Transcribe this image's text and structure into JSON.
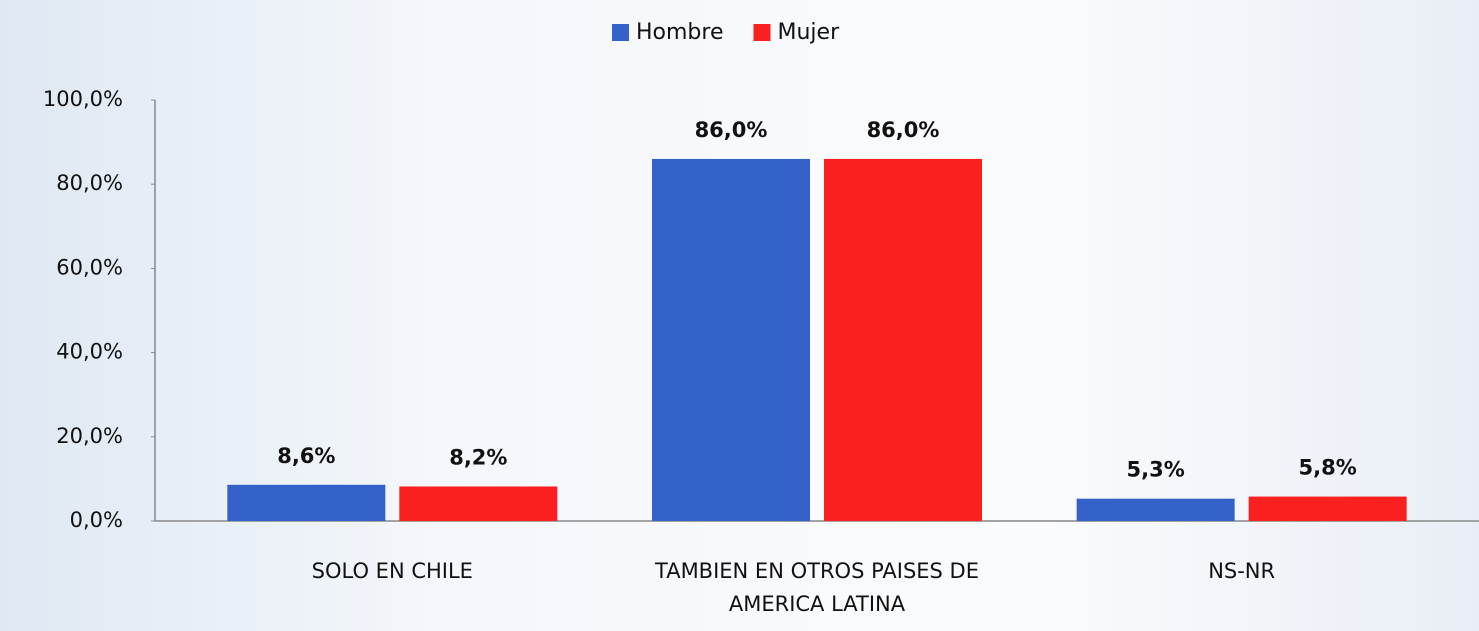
{
  "chart_data": {
    "type": "bar",
    "categories": [
      "SOLO EN CHILE",
      "TAMBIEN EN OTROS PAISES DE AMERICA LATINA",
      "NS-NR"
    ],
    "series": [
      {
        "name": "Hombre",
        "color": "#3461c8",
        "values": [
          8.6,
          86.0,
          5.3
        ],
        "value_labels": [
          "8,6%",
          "86,0%",
          "5,3%"
        ]
      },
      {
        "name": "Mujer",
        "color": "#fa2020",
        "values": [
          8.2,
          86.0,
          5.8
        ],
        "value_labels": [
          "8,2%",
          "86,0%",
          "5,8%"
        ]
      }
    ],
    "ylim": [
      0,
      100
    ],
    "yticks": [
      {
        "value": 0,
        "label": "0,0%"
      },
      {
        "value": 20,
        "label": "20,0%"
      },
      {
        "value": 40,
        "label": "40,0%"
      },
      {
        "value": 60,
        "label": "60,0%"
      },
      {
        "value": 80,
        "label": "80,0%"
      },
      {
        "value": 100,
        "label": "100,0%"
      }
    ],
    "legend": "top"
  }
}
